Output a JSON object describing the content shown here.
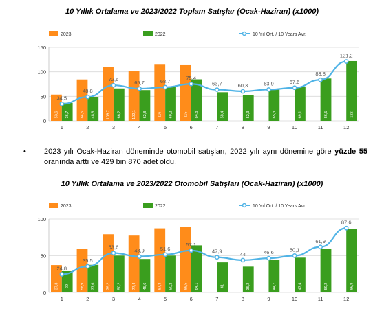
{
  "chart_data": [
    {
      "type": "bar",
      "title": "10 Yıllık Ortalama ve 2023/2022 Toplam Satışlar (Ocak-Haziran) (x1000)",
      "categories": [
        "1",
        "2",
        "3",
        "4",
        "5",
        "6",
        "7",
        "8",
        "9",
        "10",
        "11",
        "12"
      ],
      "ylim": [
        0,
        150
      ],
      "yticks": [
        "0",
        "50",
        "100",
        "150"
      ],
      "series": [
        {
          "name": "2023",
          "kind": "bar",
          "color": "#ff8c1a",
          "values": [
            53.6,
            84.5,
            109.7,
            102.1,
            116,
            115,
            null,
            null,
            null,
            null,
            null,
            null
          ],
          "labels": [
            "53,6",
            "84,5",
            "109,7",
            "102,1",
            "116",
            "115",
            "",
            "",
            "",
            "",
            "",
            ""
          ]
        },
        {
          "name": "2022",
          "kind": "bar",
          "color": "#3a9e1e",
          "values": [
            36.7,
            48.8,
            66.2,
            62.8,
            69.2,
            84.8,
            58.4,
            52.3,
            65.3,
            69.1,
            86.5,
            122
          ],
          "labels": [
            "36,7",
            "48,8",
            "66,2",
            "62,8",
            "69,2",
            "84,8",
            "58,4",
            "52,3",
            "65,3",
            "69,1",
            "86,5",
            "122"
          ]
        },
        {
          "name": "10 Yıl Ort. / 10 Years Avr.",
          "kind": "line",
          "color": "#4fb3e6",
          "values": [
            34.5,
            48.8,
            72.6,
            65.7,
            68.7,
            75.4,
            63.7,
            60.3,
            63.9,
            67.6,
            83.8,
            121.2
          ],
          "labels": [
            "34,5",
            "48,8",
            "72,6",
            "65,7",
            "68,7",
            "75,4",
            "63,7",
            "60,3",
            "63,9",
            "67,6",
            "83,8",
            "121,2"
          ]
        }
      ]
    },
    {
      "type": "bar",
      "title": "10 Yıllık Ortalama ve 2023/2022 Otomobil Satışları (Ocak-Haziran) (x1000)",
      "categories": [
        "1",
        "2",
        "3",
        "4",
        "5",
        "6",
        "7",
        "8",
        "9",
        "10",
        "11",
        "12"
      ],
      "ylim": [
        0,
        100
      ],
      "yticks": [
        "0",
        "50",
        "100"
      ],
      "series": [
        {
          "name": "2023",
          "kind": "bar",
          "color": "#ff8c1a",
          "values": [
            37.3,
            58.9,
            79.2,
            77.4,
            87.3,
            89.5,
            null,
            null,
            null,
            null,
            null,
            null
          ],
          "labels": [
            "37,3",
            "58,9",
            "79,2",
            "77,4",
            "87,3",
            "89,5",
            "",
            "",
            "",
            "",
            "",
            ""
          ]
        },
        {
          "name": "2022",
          "kind": "bar",
          "color": "#3a9e1e",
          "values": [
            29,
            37.6,
            50.2,
            45.6,
            50.2,
            64.1,
            41,
            35.2,
            44.7,
            47.4,
            59.2,
            86.8
          ],
          "labels": [
            "29",
            "37,6",
            "50,2",
            "45,6",
            "50,2",
            "64,1",
            "41",
            "35,2",
            "44,7",
            "47,4",
            "59,2",
            "86,8"
          ]
        },
        {
          "name": "10 Yıl Ort. / 10 Years Avr.",
          "kind": "line",
          "color": "#4fb3e6",
          "values": [
            24.8,
            35.5,
            53.6,
            48.9,
            51.6,
            57.1,
            47.9,
            44,
            46.6,
            50.1,
            61.9,
            87.6
          ],
          "labels": [
            "24,8",
            "35,5",
            "53,6",
            "48,9",
            "51,6",
            "57,1",
            "47,9",
            "44",
            "46,6",
            "50,1",
            "61,9",
            "87,6"
          ]
        }
      ]
    }
  ],
  "bullet": {
    "symbol": "•",
    "text_before": "2023 yılı Ocak-Haziran döneminde otomobil satışları, 2022 yılı aynı dönemine göre ",
    "text_bold": "yüzde 55",
    "text_after": " oranında arttı ve 429 bin 870 adet oldu."
  },
  "colors": {
    "bar_2023": "#ff8c1a",
    "bar_2022": "#3a9e1e",
    "line_avg": "#4fb3e6",
    "grid": "#d9d9d9"
  }
}
